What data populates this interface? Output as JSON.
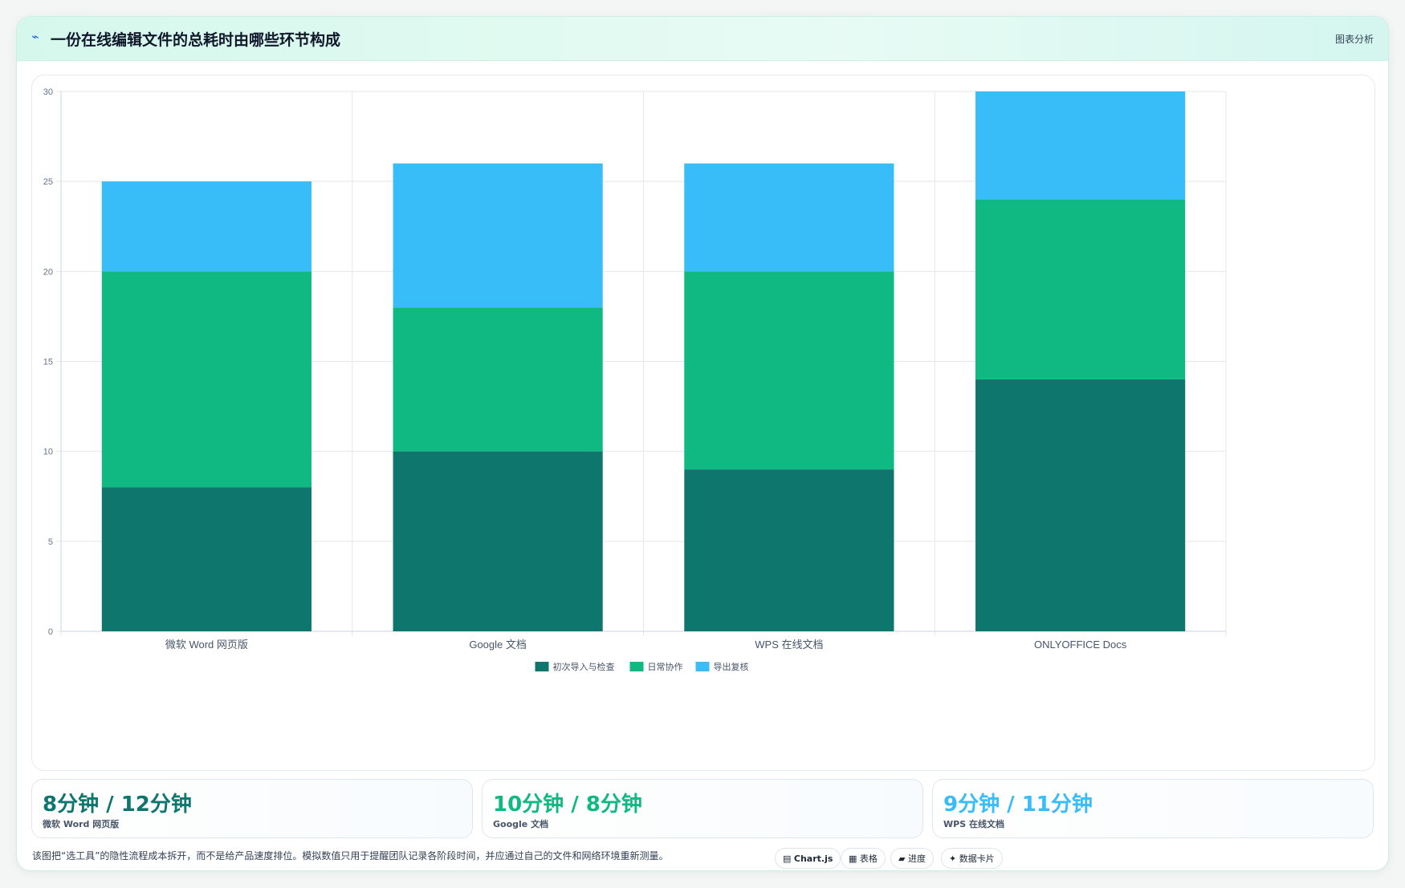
{
  "header": {
    "logo_glyph": "⌁",
    "title": "一份在线编辑文件的总耗时由哪些环节构成",
    "badge": "图表分析"
  },
  "colors": {
    "series1": "#0f766e",
    "series2": "#10b981",
    "series3": "#38bdf8",
    "grid": "#e5e7eb",
    "axis": "#cbd5e1",
    "tick": "#64748b"
  },
  "chart_data": {
    "type": "bar",
    "stacked": true,
    "categories": [
      "微软 Word 网页版",
      "Google 文档",
      "WPS 在线文档",
      "ONLYOFFICE Docs"
    ],
    "series": [
      {
        "name": "初次导入与检查",
        "color": "#0f766e",
        "values": [
          8,
          10,
          9,
          14
        ]
      },
      {
        "name": "日常协作",
        "color": "#10b981",
        "values": [
          12,
          8,
          11,
          10
        ]
      },
      {
        "name": "导出复核",
        "color": "#38bdf8",
        "values": [
          5,
          8,
          6,
          6
        ]
      }
    ],
    "ylim": [
      0,
      30
    ],
    "yticks": [
      0,
      5,
      10,
      15,
      20,
      25,
      30
    ],
    "grid": true,
    "legend": "bottom-center"
  },
  "stats": [
    {
      "value": "8分钟 / 12分钟",
      "label": "微软 Word 网页版",
      "color": "#0f766e"
    },
    {
      "value": "10分钟 / 8分钟",
      "label": "Google 文档",
      "color": "#10b981"
    },
    {
      "value": "9分钟 / 11分钟",
      "label": "WPS 在线文档",
      "color": "#38bdf8"
    }
  ],
  "footnote": "该图把“选工具”的隐性流程成本拆开，而不是给产品速度排位。模拟数值只用于提醒团队记录各阶段时间，并应通过自己的文件和网络环境重新测量。",
  "tags": [
    {
      "icon": "▤",
      "label": "Chart.js"
    },
    {
      "icon": "▦",
      "label": "表格"
    },
    {
      "icon": "▰",
      "label": "进度"
    },
    {
      "icon": "✦",
      "label": "数据卡片"
    }
  ]
}
